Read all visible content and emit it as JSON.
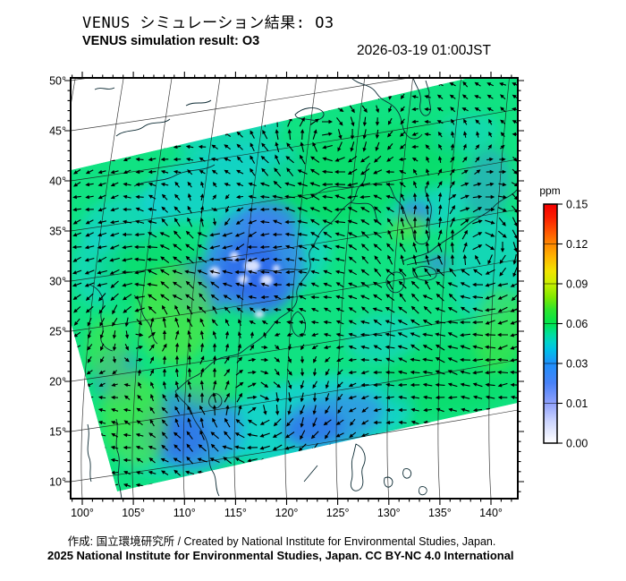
{
  "header": {
    "title_jp": "VENUS シミュレーション結果: O3",
    "title_en": "VENUS simulation result: O3",
    "timestamp": "2026-03-19 01:00JST"
  },
  "footer": {
    "credit_line": "作成: 国立環境研究所 / Created by National Institute for Environmental Studies, Japan.",
    "license_line": "2025 National Institute for Environmental Studies, Japan. CC BY-NC 4.0 International"
  },
  "chart_data": {
    "type": "heatmap",
    "title": "VENUS simulation result: O3",
    "variable": "O3",
    "unit": "ppm",
    "timestamp": "2026-03-19 01:00JST",
    "map_region": "East Asia (100E-140E, 10N-50N), rotated model domain with wind vectors",
    "x_axis": {
      "name": "longitude",
      "tick_labels": [
        "100°",
        "105°",
        "110°",
        "115°",
        "120°",
        "125°",
        "130°",
        "135°",
        "140°"
      ],
      "tick_values": [
        100,
        105,
        110,
        115,
        120,
        125,
        130,
        135,
        140
      ],
      "minor_step_deg": 1
    },
    "y_axis": {
      "name": "latitude",
      "tick_labels": [
        "50°",
        "45°",
        "40°",
        "35°",
        "30°",
        "25°",
        "20°",
        "15°",
        "10°"
      ],
      "tick_values": [
        50,
        45,
        40,
        35,
        30,
        25,
        20,
        15,
        10
      ],
      "minor_step_deg": 1
    },
    "colorbar": {
      "unit": "ppm",
      "orientation": "vertical",
      "tick_labels": [
        "0.15",
        "0.12",
        "0.09",
        "0.06",
        "0.03",
        "0.01",
        "0.00"
      ],
      "tick_values": [
        0.15,
        0.12,
        0.09,
        0.06,
        0.03,
        0.01,
        0.0
      ],
      "gradient_stops": [
        {
          "offset": 0.0,
          "color": "#ffffff"
        },
        {
          "offset": 0.09,
          "color": "#cdd5fe"
        },
        {
          "offset": 0.167,
          "color": "#8fa0fc"
        },
        {
          "offset": 0.25,
          "color": "#4a82f8"
        },
        {
          "offset": 0.333,
          "color": "#1e90fa"
        },
        {
          "offset": 0.39,
          "color": "#00c0e8"
        },
        {
          "offset": 0.42,
          "color": "#00d2cd"
        },
        {
          "offset": 0.46,
          "color": "#00df96"
        },
        {
          "offset": 0.5,
          "color": "#00e44d"
        },
        {
          "offset": 0.56,
          "color": "#30e52b"
        },
        {
          "offset": 0.61,
          "color": "#7fe900"
        },
        {
          "offset": 0.667,
          "color": "#c9ef00"
        },
        {
          "offset": 0.72,
          "color": "#f2e400"
        },
        {
          "offset": 0.78,
          "color": "#ffb400"
        },
        {
          "offset": 0.833,
          "color": "#ff8800"
        },
        {
          "offset": 0.89,
          "color": "#ff5000"
        },
        {
          "offset": 0.944,
          "color": "#fb1e00"
        },
        {
          "offset": 1.0,
          "color": "#f50000"
        }
      ]
    },
    "field": {
      "base_level_ppm": 0.045,
      "regions": [
        {
          "area": "most of domain (background ocean/land)",
          "o3_ppm": 0.045,
          "color": "#10e282"
        },
        {
          "area": "central-eastern China 115-122E 28-38N",
          "o3_ppm": 0.015,
          "color": "#3f7df2"
        },
        {
          "area": "Sichuan basin 103-108E 28-32N",
          "o3_ppm": 0.02,
          "color": "#4a82f8"
        },
        {
          "area": "small spots in eastern China",
          "o3_ppm": 0.003,
          "color": "#e6ebff"
        },
        {
          "area": "Seoul area 126-128E 36-38N",
          "o3_ppm": 0.02,
          "color": "#4a82f8"
        },
        {
          "area": "Indochina / northern Vietnam",
          "o3_ppm": 0.02,
          "color": "#4a82f8"
        },
        {
          "area": "South China Sea band",
          "o3_ppm": 0.03,
          "color": "#19cfdd"
        },
        {
          "area": "southwest China highlands",
          "o3_ppm": 0.06,
          "color": "#55e73a"
        },
        {
          "area": "Sea of Japan east of Korea",
          "o3_ppm": 0.055,
          "color": "#2ae455"
        },
        {
          "area": "NW / SW / SE corners outside simulation domain",
          "o3_ppm": null,
          "color": "#ffffff"
        }
      ]
    },
    "wind_vectors": {
      "style": "small black arrows on a regular grid",
      "notable_features": [
        "cyclonic swirl near 123E 44N (upper middle)",
        "large swirl east of Japan around 138E 32N",
        "swirl over South China Sea around 116E 13N",
        "coherent along-coast flow over East China Sea"
      ]
    },
    "domain_shape": "rotated rectangle clipped by the frame; white no-data triangles in NW, SW and SE corners"
  },
  "colors": {
    "frame": "#000000",
    "graticule": "#1a1a1a",
    "coastline": "#0c2a33",
    "arrow": "#000000",
    "background": "#ffffff",
    "field_palette": {
      "base": "#10e282",
      "cyan": "#19cfdd",
      "blue": "#3f7df2",
      "blue2": "#2e66ee",
      "pale": "#e6ebff",
      "green": "#55e73a",
      "green2": "#00d84f"
    }
  }
}
